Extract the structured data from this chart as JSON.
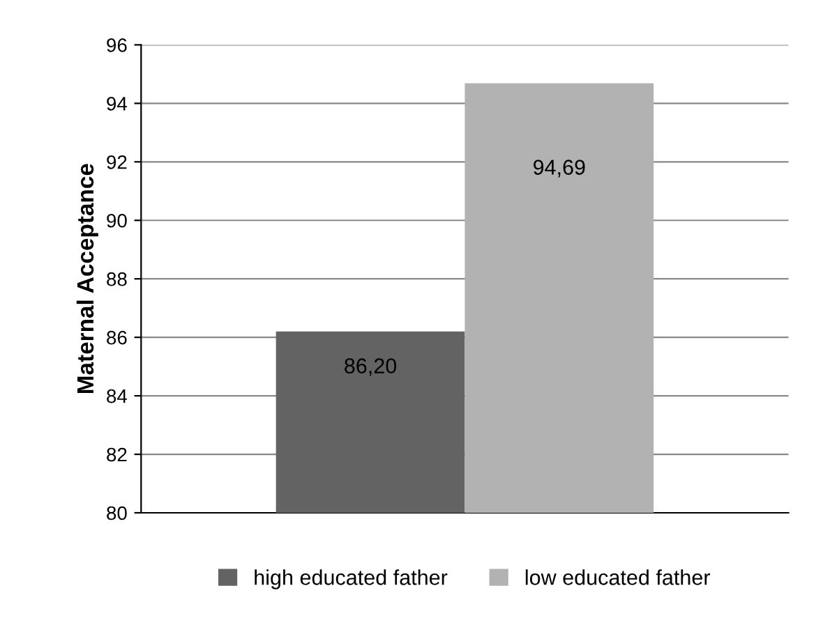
{
  "chart_data": {
    "type": "bar",
    "ylabel": "Maternal Acceptance",
    "categories": [
      null
    ],
    "series": [
      {
        "name": "high educated father",
        "color": "#636363",
        "values": [
          86.2
        ],
        "value_labels": [
          "86,20"
        ]
      },
      {
        "name": "low educated father",
        "color": "#b2b2b2",
        "values": [
          94.69
        ],
        "value_labels": [
          "94,69"
        ]
      }
    ],
    "ylim": [
      80,
      96
    ],
    "yticks": [
      80,
      82,
      84,
      86,
      88,
      90,
      92,
      94,
      96
    ],
    "grid": "y",
    "legend": "bottom"
  }
}
